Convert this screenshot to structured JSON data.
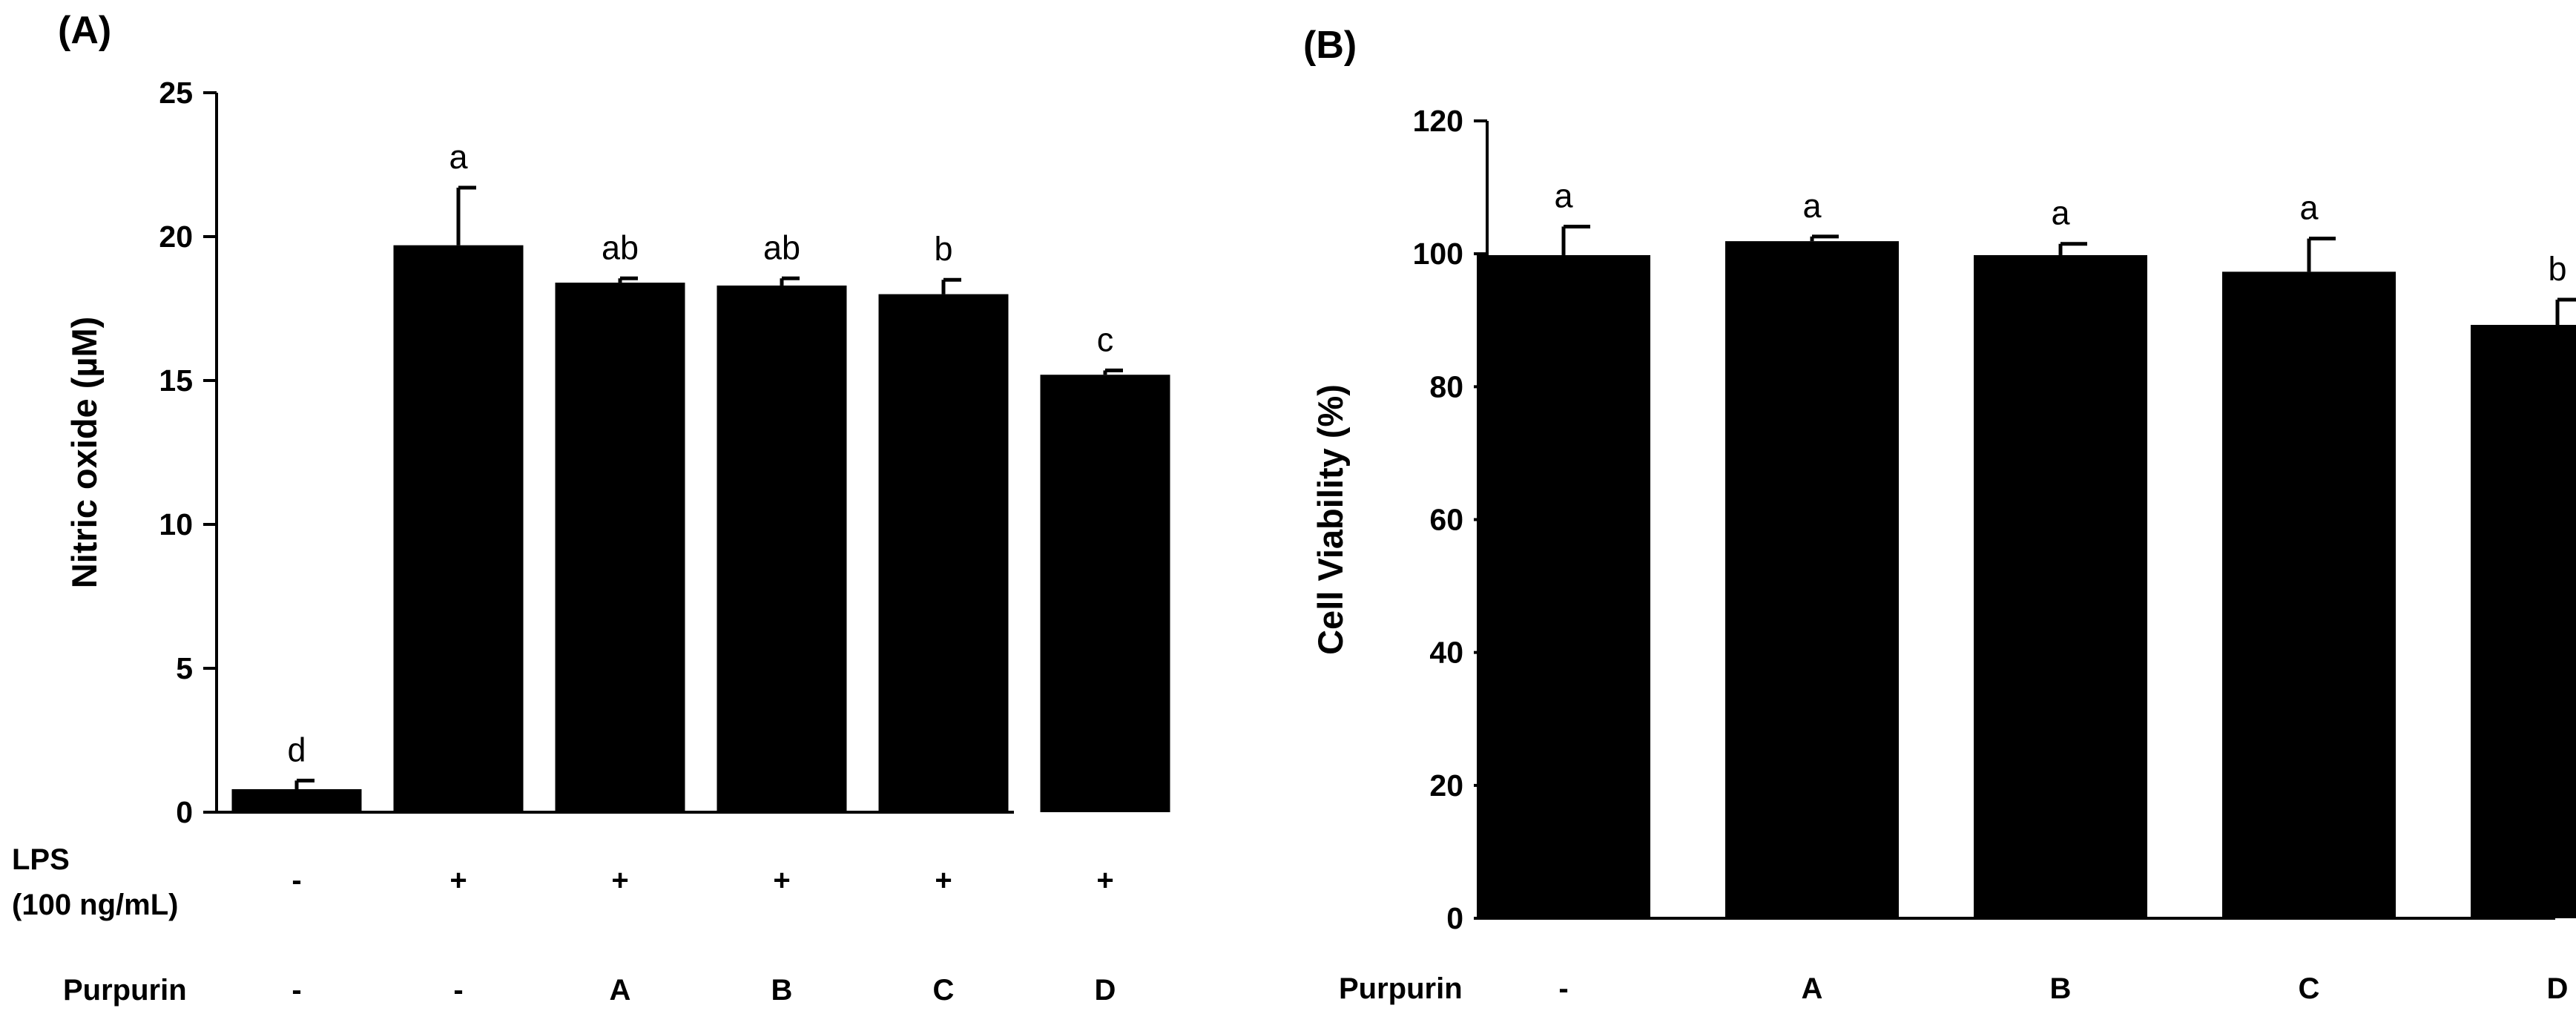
{
  "colors": {
    "bar": "#000000",
    "axis": "#000000",
    "background": "#ffffff"
  },
  "chart_data": [
    {
      "type": "bar",
      "panel": "(A)",
      "title": "",
      "xlabel": "",
      "ylabel": "Nitric oxide (µM)",
      "ylim": [
        0,
        25
      ],
      "yticks": [
        0,
        5,
        10,
        15,
        20,
        25
      ],
      "categories": [
        "-/-",
        "+/-",
        "+/A",
        "+/B",
        "+/C",
        "+/D"
      ],
      "values": [
        0.8,
        19.7,
        18.4,
        18.3,
        18.0,
        15.2
      ],
      "errors": [
        0.3,
        2.0,
        0.15,
        0.25,
        0.5,
        0.15
      ],
      "significance": [
        "d",
        "a",
        "ab",
        "ab",
        "b",
        "c"
      ],
      "row_labels": {
        "lps_line1": "LPS",
        "lps_line2": "(100 ng/mL)",
        "purpurin": "Purpurin"
      },
      "lps": [
        "-",
        "+",
        "+",
        "+",
        "+",
        "+"
      ],
      "purpurin": [
        "-",
        "-",
        "A",
        "B",
        "C",
        "D"
      ]
    },
    {
      "type": "bar",
      "panel": "(B)",
      "title": "",
      "xlabel": "",
      "ylabel": "Cell Viability (%)",
      "ylim": [
        0,
        120
      ],
      "yticks": [
        0,
        20,
        40,
        60,
        80,
        100,
        120
      ],
      "categories": [
        "-",
        "A",
        "B",
        "C",
        "D"
      ],
      "values": [
        99.8,
        101.9,
        99.8,
        97.3,
        89.3
      ],
      "errors": [
        4.3,
        0.7,
        1.7,
        5.0,
        3.8
      ],
      "significance": [
        "a",
        "a",
        "a",
        "a",
        "b"
      ],
      "row_labels": {
        "purpurin": "Purpurin"
      },
      "purpurin": [
        "-",
        "A",
        "B",
        "C",
        "D"
      ]
    }
  ]
}
